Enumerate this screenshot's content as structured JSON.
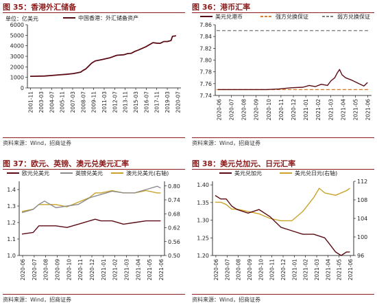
{
  "colors": {
    "title_red": "#8b1a1a",
    "series_red": "#5a0a14",
    "series_gray": "#8c8c8c",
    "series_gold": "#c9a227",
    "dash_orange": "#e07b2e",
    "dash_gray": "#808080"
  },
  "panels": [
    {
      "title": "图 35：香港外汇储备",
      "source": "资料来源：Wind，招商证券"
    },
    {
      "title": "图 36：港币汇率",
      "source": "资料来源：Wind，招商证券"
    },
    {
      "title": "图 37：欧元、英镑、澳元兑美元汇率",
      "source": "资料来源：Wind，招商证券"
    },
    {
      "title": "图 38：美元兑加元、日元汇率",
      "source": "资料来源：Wind，招商证券"
    }
  ],
  "chart_data": [
    {
      "type": "line",
      "unit_label": "单位：亿美元",
      "ylim": [
        0,
        6000
      ],
      "yticks": [
        "0",
        "1000",
        "2000",
        "3000",
        "4000",
        "5000",
        "6000"
      ],
      "xticks": [
        "2001-11",
        "2003-03",
        "2004-07",
        "2005-11",
        "2007-03",
        "2008-07",
        "2009-11",
        "2011-03",
        "2012-07",
        "2013-11",
        "2015-03",
        "2016-07",
        "2017-11",
        "2019-03",
        "2020-07"
      ],
      "series": [
        {
          "name": "中国香港：外汇储备资产",
          "x": [
            0,
            2,
            3,
            4,
            5,
            6,
            7,
            7.3,
            7.7,
            8,
            8.5,
            9,
            10,
            11,
            12,
            13,
            13.5,
            14,
            14.5,
            15,
            16,
            17,
            17.5,
            18,
            18.5,
            19,
            19.5,
            19.7,
            20.2
          ],
          "values": [
            1100,
            1130,
            1180,
            1240,
            1290,
            1360,
            1500,
            1650,
            1800,
            2000,
            2350,
            2560,
            2700,
            2850,
            3100,
            3150,
            3260,
            3290,
            3470,
            3600,
            3900,
            4300,
            4250,
            4230,
            4400,
            4400,
            4500,
            4900,
            4950
          ]
        }
      ]
    },
    {
      "type": "line",
      "ylim": [
        7.74,
        7.86
      ],
      "yticks": [
        "7.74",
        "7.76",
        "7.78",
        "7.80",
        "7.82",
        "7.84",
        "7.86"
      ],
      "xticks": [
        "2020-06",
        "2020-07",
        "2020-08",
        "2020-09",
        "2020-10",
        "2020-11",
        "2020-12",
        "2021-01",
        "2021-02",
        "2021-03",
        "2021-04",
        "2021-05",
        "2021-06"
      ],
      "series": [
        {
          "name": "美元兑港币",
          "x": [
            0,
            1,
            2,
            3,
            4,
            5,
            6,
            7,
            7.5,
            8,
            8.5,
            9,
            9.3,
            9.6,
            9.8,
            10,
            10.2,
            10.5,
            11,
            11.5,
            12,
            12.3
          ],
          "values": [
            7.75,
            7.75,
            7.75,
            7.75,
            7.75,
            7.751,
            7.753,
            7.754,
            7.757,
            7.755,
            7.759,
            7.757,
            7.765,
            7.77,
            7.778,
            7.784,
            7.775,
            7.77,
            7.766,
            7.761,
            7.756,
            7.762
          ]
        },
        {
          "name": "强方兑换保证",
          "constant": 7.75
        },
        {
          "name": "弱方兑换保证",
          "constant": 7.85
        }
      ]
    },
    {
      "type": "line",
      "ylim": [
        1.0,
        1.45
      ],
      "yticks": [
        "1.0",
        "1.1",
        "1.2",
        "1.3",
        "1.4"
      ],
      "y2lim": [
        0.5,
        0.82
      ],
      "y2ticks": [
        "0.50",
        "0.56",
        "0.62",
        "0.68",
        "0.74",
        "0.80"
      ],
      "xticks": [
        "2020-06",
        "2020-07",
        "2020-08",
        "2020-09",
        "2020-10",
        "2020-11",
        "2020-12",
        "2021-01",
        "2021-02",
        "2021-03",
        "2021-04",
        "2021-05",
        "2021-06"
      ],
      "series": [
        {
          "name": "欧元兑美元",
          "x": [
            0,
            1,
            1.5,
            2,
            3,
            4,
            5,
            6,
            6.5,
            7,
            8,
            9,
            10,
            11,
            12,
            12.3
          ],
          "values": [
            1.13,
            1.14,
            1.18,
            1.18,
            1.18,
            1.17,
            1.19,
            1.21,
            1.22,
            1.21,
            1.21,
            1.19,
            1.2,
            1.21,
            1.21,
            1.21
          ]
        },
        {
          "name": "英镑兑美元",
          "x": [
            0,
            1,
            1.5,
            2,
            3,
            4,
            5,
            6,
            6.5,
            7,
            8,
            9,
            10,
            11,
            12,
            12.3
          ],
          "values": [
            1.26,
            1.28,
            1.31,
            1.33,
            1.29,
            1.3,
            1.31,
            1.35,
            1.36,
            1.37,
            1.39,
            1.38,
            1.38,
            1.4,
            1.42,
            1.41
          ]
        },
        {
          "name": "澳元兑美元(右轴)",
          "axis": "right",
          "x": [
            0,
            1,
            1.5,
            2,
            3,
            4,
            5,
            6,
            6.5,
            7,
            8,
            9,
            10,
            11,
            12,
            12.3
          ],
          "values": [
            0.69,
            0.7,
            0.72,
            0.72,
            0.72,
            0.71,
            0.73,
            0.75,
            0.77,
            0.77,
            0.78,
            0.77,
            0.77,
            0.78,
            0.77,
            0.77
          ]
        }
      ]
    },
    {
      "type": "line",
      "ylim": [
        1.2,
        1.41
      ],
      "yticks": [
        "1.20",
        "1.25",
        "1.30",
        "1.35",
        "1.40"
      ],
      "y2lim": [
        96,
        112
      ],
      "y2ticks": [
        "96",
        "100",
        "104",
        "108",
        "112"
      ],
      "xticks": [
        "2020-06",
        "2020-07",
        "2020-08",
        "2020-09",
        "2020-10",
        "2020-11",
        "2020-12",
        "2021-01",
        "2021-02",
        "2021-03",
        "2021-04",
        "2021-05",
        "2021-06"
      ],
      "series": [
        {
          "name": "美元兑加元",
          "x": [
            0,
            0.5,
            1,
            1.5,
            2,
            3,
            4,
            5,
            6,
            7,
            8,
            9,
            10,
            10.5,
            11,
            11.5,
            12,
            12.3
          ],
          "values": [
            1.37,
            1.36,
            1.36,
            1.34,
            1.33,
            1.32,
            1.33,
            1.31,
            1.28,
            1.27,
            1.26,
            1.26,
            1.25,
            1.23,
            1.21,
            1.2,
            1.21,
            1.21
          ]
        },
        {
          "name": "美元兑日元(右轴)",
          "axis": "right",
          "x": [
            0,
            0.5,
            1,
            1.5,
            2,
            3,
            4,
            5,
            6,
            7,
            7.5,
            8,
            9,
            9.5,
            10,
            11,
            12,
            12.3
          ],
          "values": [
            107.5,
            107.5,
            107.0,
            106.0,
            106.0,
            105.5,
            105.0,
            104.0,
            103.5,
            103.5,
            104.5,
            105.5,
            108.5,
            110.5,
            109.5,
            109.0,
            110.0,
            110.5
          ]
        }
      ]
    }
  ]
}
